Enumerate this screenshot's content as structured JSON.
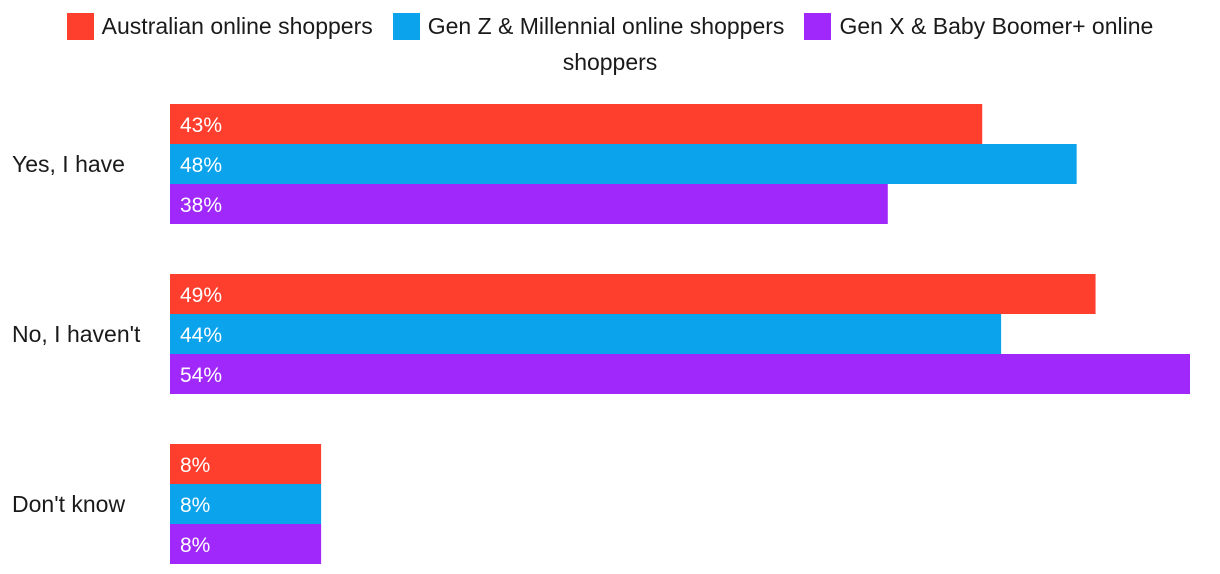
{
  "chart_data": {
    "type": "bar",
    "orientation": "horizontal",
    "title": "",
    "xlabel": "",
    "ylabel": "",
    "xlim": [
      0,
      54
    ],
    "grid": false,
    "legend_position": "top",
    "categories": [
      "Yes, I have",
      "No, I haven't",
      "Don't know"
    ],
    "series": [
      {
        "name": "Australian online shoppers",
        "color": "#ff3f2e",
        "values": [
          43,
          49,
          8
        ],
        "labels": [
          "43%",
          "49%",
          "8%"
        ]
      },
      {
        "name": "Gen Z & Millennial online shoppers",
        "color": "#0aa3ec",
        "values": [
          48,
          44,
          8
        ],
        "labels": [
          "48%",
          "44%",
          "8%"
        ]
      },
      {
        "name": "Gen X & Baby Boomer+ online shoppers",
        "color": "#a128fb",
        "values": [
          38,
          54,
          8
        ],
        "labels": [
          "38%",
          "54%",
          "8%"
        ]
      }
    ]
  },
  "legend": {
    "items": [
      {
        "label": "Australian online shoppers",
        "color": "#ff3f2e"
      },
      {
        "label": "Gen Z & Millennial online shoppers",
        "color": "#0aa3ec"
      },
      {
        "label": "Gen X & Baby Boomer+ online",
        "color": "#a128fb"
      }
    ],
    "wrap_text": "shoppers"
  }
}
